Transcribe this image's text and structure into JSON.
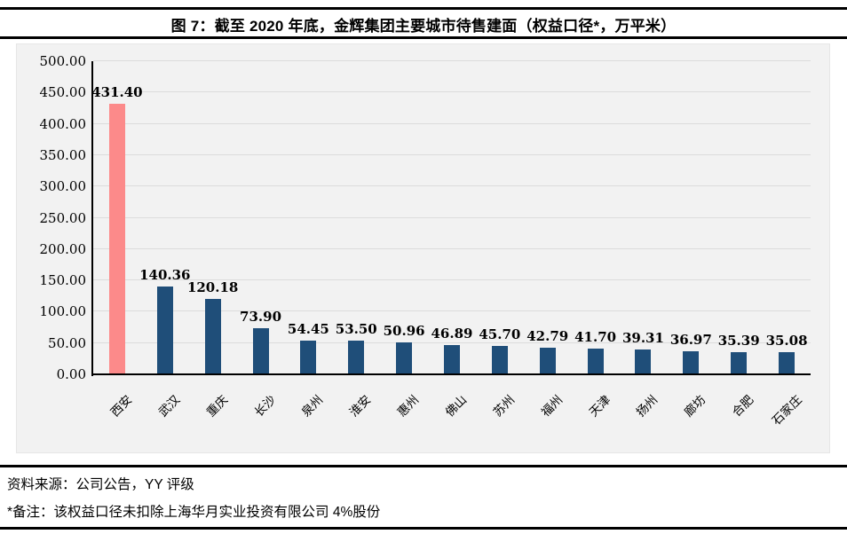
{
  "title": "图 7：截至 2020 年底，金辉集团主要城市待售建面（权益口径*，万平米）",
  "footer": {
    "source": "资料来源：公司公告，YY 评级",
    "note": "*备注：该权益口径未扣除上海华月实业投资有限公司 4%股份"
  },
  "colors": {
    "highlight_bar": "#fc8a8a",
    "bar": "#1f4e79",
    "plot_background": "#f2f2f2",
    "gridline": "#dcdcdc",
    "axis": "#000000"
  },
  "chart_data": {
    "type": "bar",
    "title": "图 7：截至 2020 年底，金辉集团主要城市待售建面（权益口径*，万平米）",
    "categories": [
      "西安",
      "武汉",
      "重庆",
      "长沙",
      "泉州",
      "淮安",
      "惠州",
      "佛山",
      "苏州",
      "福州",
      "天津",
      "扬州",
      "廊坊",
      "合肥",
      "石家庄"
    ],
    "values": [
      431.4,
      140.36,
      120.18,
      73.9,
      54.45,
      53.5,
      50.96,
      46.89,
      45.7,
      42.79,
      41.7,
      39.31,
      36.97,
      35.39,
      35.08
    ],
    "value_labels": [
      "431.40",
      "140.36",
      "120.18",
      "73.90",
      "54.45",
      "53.50",
      "50.96",
      "46.89",
      "45.70",
      "42.79",
      "41.70",
      "39.31",
      "36.97",
      "35.39",
      "35.08"
    ],
    "highlight_index": 0,
    "highlight_category": "西安",
    "xlabel": "",
    "ylabel": "",
    "ylim": [
      0,
      500
    ],
    "ytick_step": 50,
    "ytick_labels": [
      "0.00",
      "50.00",
      "100.00",
      "150.00",
      "200.00",
      "250.00",
      "300.00",
      "350.00",
      "400.00",
      "450.00",
      "500.00"
    ],
    "grid": true,
    "legend": false,
    "xtick_rotation_deg": -45
  }
}
